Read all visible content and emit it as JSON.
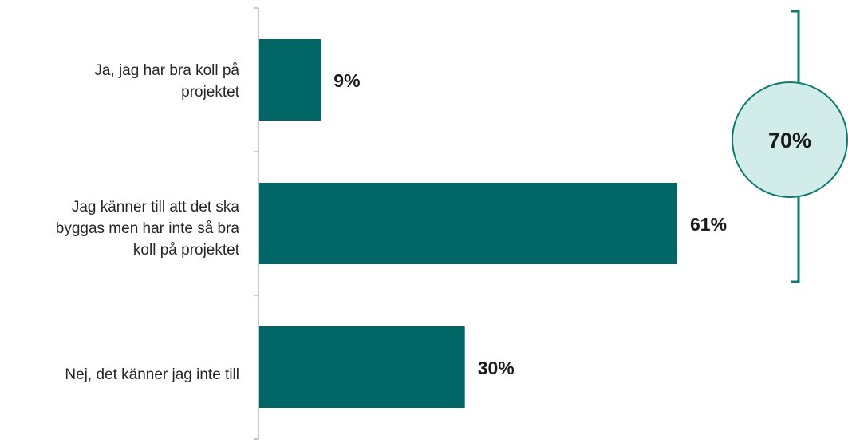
{
  "chart_data": {
    "type": "bar",
    "orientation": "horizontal",
    "categories": [
      "Ja, jag har bra koll på\nprojektet",
      "Jag känner till att det ska\nbyggas men har inte så bra\nkoll på projektet",
      "Nej, det känner jag inte till"
    ],
    "values": [
      9,
      61,
      30
    ],
    "value_labels": [
      "9%",
      "61%",
      "30%"
    ],
    "xlim": [
      0,
      100
    ],
    "grid": false,
    "bar_color": "#006666",
    "annotation": {
      "type": "bracket-summary",
      "applies_to": [
        0,
        1
      ],
      "value": 70,
      "label": "70%",
      "circle_fill": "#d2ecea",
      "stroke_color": "#0e7a6e"
    }
  }
}
